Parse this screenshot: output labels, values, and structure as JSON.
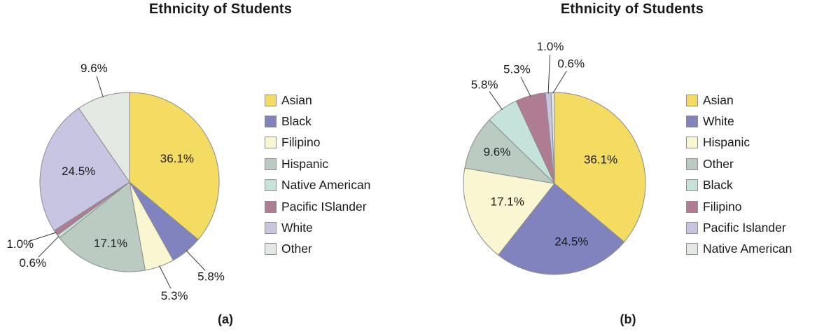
{
  "chart_data": [
    {
      "type": "pie",
      "title": "Ethnicity of Students",
      "caption": "(a)",
      "legend_position": "right",
      "start_angle_deg": 0,
      "direction": "clockwise",
      "categories": [
        "Asian",
        "Black",
        "Filipino",
        "Hispanic",
        "Native American",
        "Pacific ISlander",
        "White",
        "Other"
      ],
      "values": [
        36.1,
        5.8,
        5.3,
        17.1,
        0.6,
        1.0,
        24.5,
        9.6
      ],
      "labels": [
        "36.1%",
        "5.8%",
        "5.3%",
        "17.1%",
        "0.6%",
        "1.0%",
        "24.5%",
        "9.6%"
      ],
      "colors": [
        "#F4DC63",
        "#8083BE",
        "#FAF6D2",
        "#BACCC2",
        "#C5E2DB",
        "#AF7C93",
        "#C8C5E2",
        "#E2E9E2"
      ],
      "label_inside": [
        true,
        false,
        false,
        true,
        false,
        false,
        true,
        false
      ]
    },
    {
      "type": "pie",
      "title": "Ethnicity of Students",
      "caption": "(b)",
      "legend_position": "right",
      "start_angle_deg": 0,
      "direction": "clockwise",
      "categories": [
        "Asian",
        "White",
        "Hispanic",
        "Other",
        "Black",
        "Filipino",
        "Pacific Islander",
        "Native American"
      ],
      "values": [
        36.1,
        24.5,
        17.1,
        9.6,
        5.8,
        5.3,
        1.0,
        0.6
      ],
      "labels": [
        "36.1%",
        "24.5%",
        "17.1%",
        "9.6%",
        "5.8%",
        "5.3%",
        "1.0%",
        "0.6%"
      ],
      "colors": [
        "#F4DC63",
        "#8083BE",
        "#FAF6D2",
        "#BACCC2",
        "#C5E2DB",
        "#AF7C93",
        "#C8C5E2",
        "#E2E9E2"
      ],
      "label_inside": [
        true,
        true,
        true,
        true,
        false,
        false,
        false,
        false
      ]
    }
  ]
}
